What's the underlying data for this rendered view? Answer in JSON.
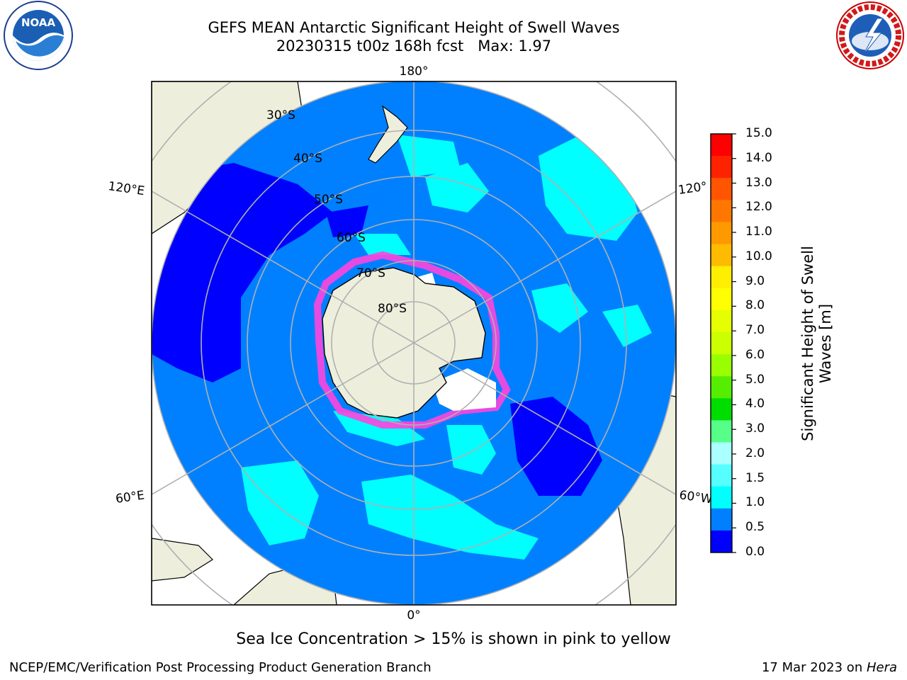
{
  "title_line1": "GEFS MEAN Antarctic Significant Height of Swell Waves",
  "title_line2": "20230315 t00z 168h fcst   Max: 1.97",
  "caption": "Sea Ice Concentration > 15% is shown in pink to yellow",
  "footer_left": "NCEP/EMC/Verification Post Processing Product Generation Branch",
  "footer_right_date": "17 Mar 2023 on ",
  "footer_right_host": "Hera",
  "logos": {
    "left": {
      "icon": "noaa-logo-icon",
      "text": "NOAA"
    },
    "right": {
      "icon": "nws-logo-icon",
      "text": "NATIONAL WEATHER SERVICE"
    }
  },
  "map_labels": {
    "lon_top": "180°",
    "lon_bottom": "0°",
    "lon_upper_left": "120°E",
    "lon_upper_right": "120°",
    "lon_lower_left": "60°E",
    "lon_lower_right": "60°W",
    "lat_30": "30°S",
    "lat_40": "40°S",
    "lat_50": "50°S",
    "lat_60": "60°S",
    "lat_70": "70°S",
    "lat_80": "80°S"
  },
  "colorbar": {
    "title_line1": "Significant Height of Swell",
    "title_line2": "Waves [m]",
    "ticks": [
      "15.0",
      "14.0",
      "13.0",
      "12.0",
      "11.0",
      "10.0",
      "9.0",
      "8.0",
      "7.0",
      "6.0",
      "5.0",
      "4.0",
      "3.0",
      "2.0",
      "1.5",
      "1.0",
      "0.5",
      "0.0"
    ],
    "colors_top_to_bottom": [
      "#ff0000",
      "#ff2200",
      "#ff5500",
      "#ff7700",
      "#ff9900",
      "#ffbb00",
      "#ffee00",
      "#ffff00",
      "#e5ff00",
      "#ccff00",
      "#99ff00",
      "#55ee00",
      "#00dd00",
      "#55ff88",
      "#aaffff",
      "#55ffff",
      "#00ffff",
      "#0080ff",
      "#0000ff"
    ]
  },
  "colors": {
    "ocean_low": "#0000ff",
    "ocean_mid": "#0080ff",
    "ocean_high": "#00ffff",
    "land": "#eeeedd",
    "grid": "#b0b0b0",
    "sea_ice_edge": "#ff44dd"
  }
}
